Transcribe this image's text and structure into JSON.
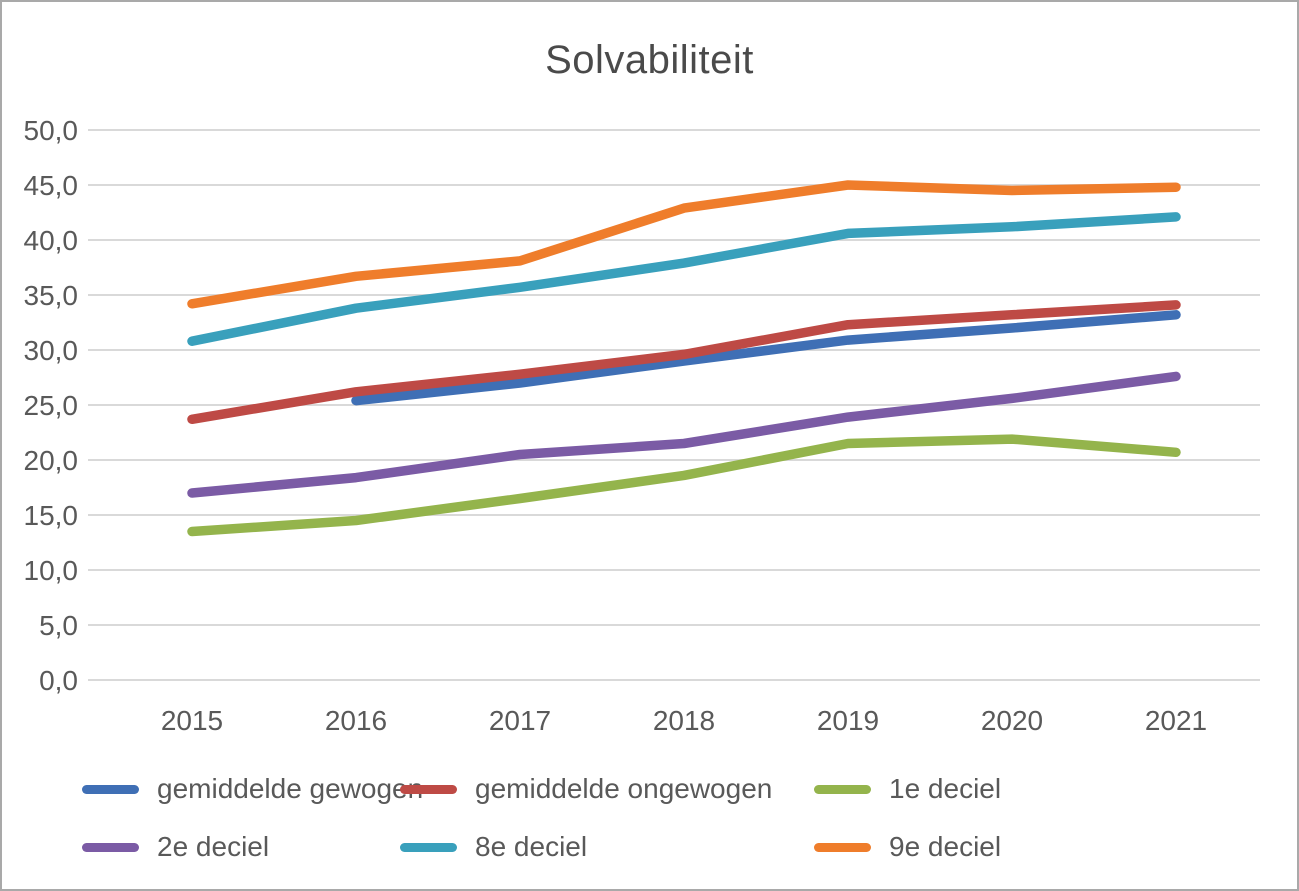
{
  "chart_data": {
    "type": "line",
    "title": "Solvabiliteit",
    "xlabel": "",
    "ylabel": "",
    "x_labels": [
      "2015",
      "2016",
      "2017",
      "2018",
      "2019",
      "2020",
      "2021"
    ],
    "y_tick_labels": [
      "0,0",
      "5,0",
      "10,0",
      "15,0",
      "20,0",
      "25,0",
      "30,0",
      "35,0",
      "40,0",
      "45,0",
      "50,0"
    ],
    "ylim": [
      0,
      50
    ],
    "y_step": 5,
    "grid": true,
    "legend_position": "bottom",
    "colors": {
      "gridline": "#d9d9d9",
      "axis_text": "#595959",
      "title_text": "#4a4a4a",
      "frame_border": "#a9a9a9"
    },
    "series": [
      {
        "name": "gemiddelde gewogen",
        "color": "#3f6fb5",
        "values": [
          null,
          25.4,
          27.0,
          29.0,
          30.9,
          32.0,
          33.2
        ]
      },
      {
        "name": "gemiddelde ongewogen",
        "color": "#be4a45",
        "values": [
          23.7,
          26.2,
          27.8,
          29.6,
          32.3,
          33.2,
          34.1
        ]
      },
      {
        "name": "1e deciel",
        "color": "#94b44c",
        "values": [
          13.5,
          14.5,
          16.5,
          18.6,
          21.5,
          21.9,
          20.7
        ]
      },
      {
        "name": "2e deciel",
        "color": "#7b5ba5",
        "values": [
          17.0,
          18.4,
          20.5,
          21.5,
          23.9,
          25.6,
          27.6
        ]
      },
      {
        "name": "8e deciel",
        "color": "#39a0bc",
        "values": [
          30.8,
          33.8,
          35.7,
          37.9,
          40.6,
          41.2,
          42.1
        ]
      },
      {
        "name": "9e deciel",
        "color": "#ef7d2b",
        "values": [
          34.2,
          36.7,
          38.1,
          42.9,
          45.0,
          44.5,
          44.8
        ]
      }
    ]
  }
}
